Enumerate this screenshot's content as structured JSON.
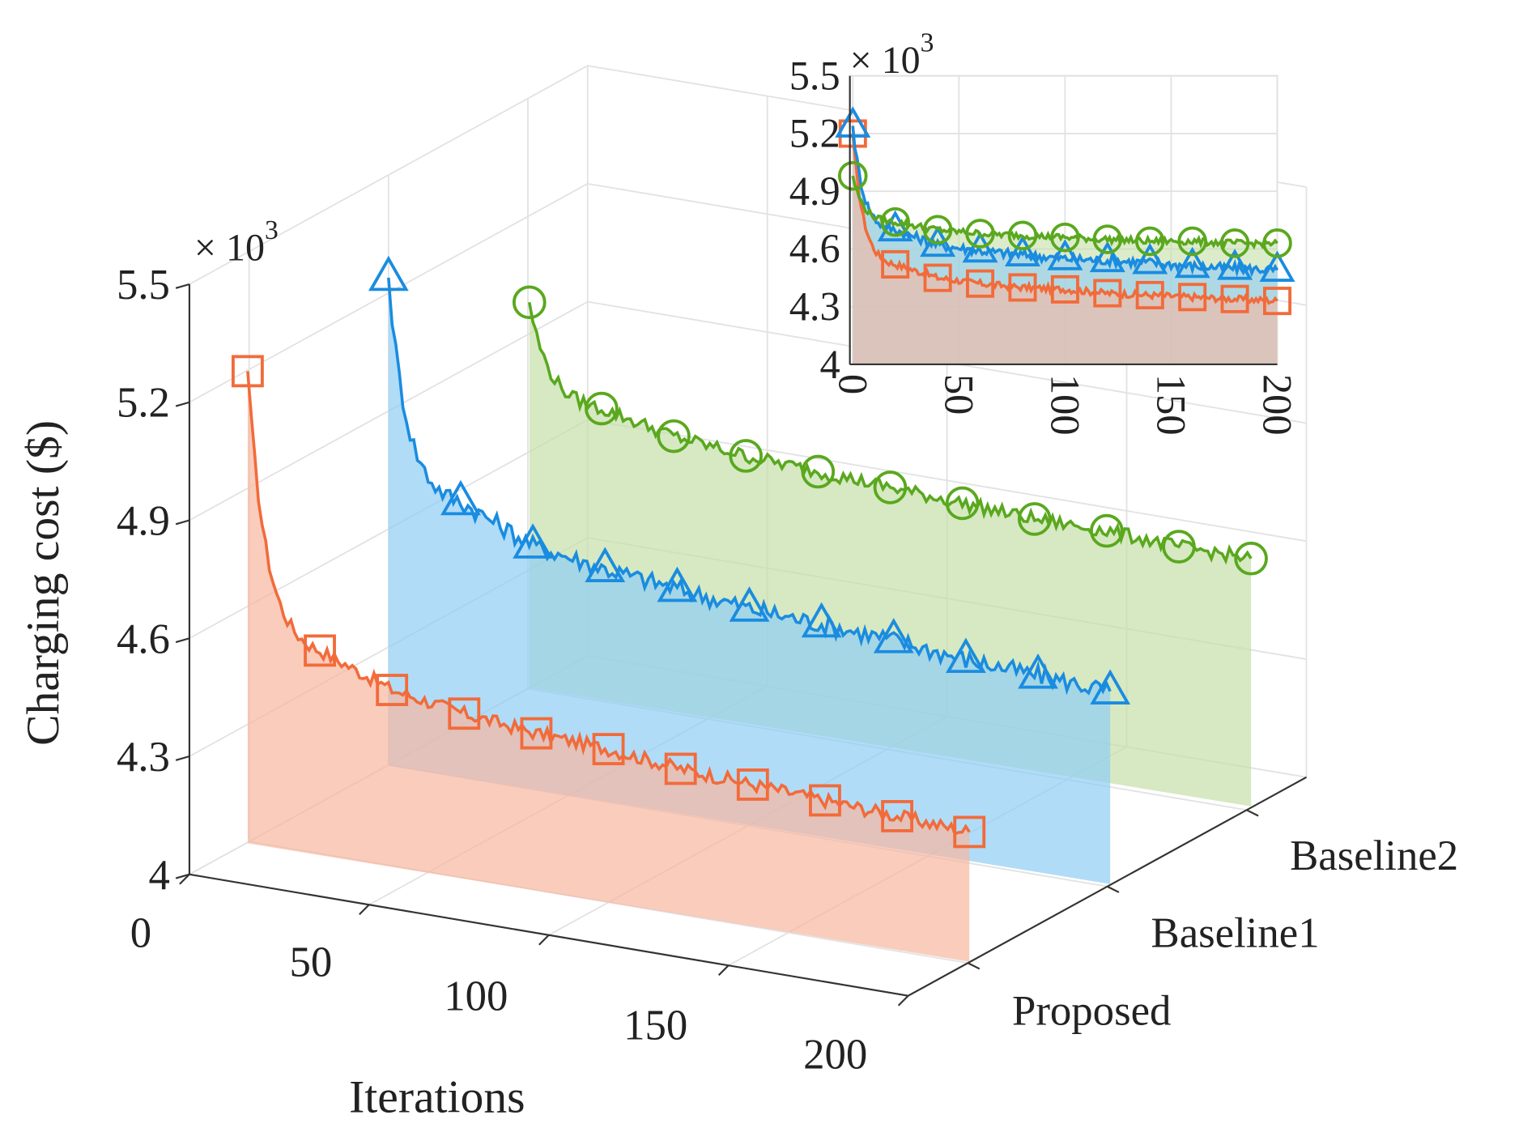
{
  "chart_data": {
    "type": "line",
    "style": "3d-waterfall with filled areas and inset 2d plot",
    "xlabel": "Iterations",
    "ylabel": "Charging cost ($)",
    "y_multiplier": "× 10",
    "y_multiplier_exp": "3",
    "x_ticks": [
      "0",
      "50",
      "100",
      "150",
      "200"
    ],
    "y_ticks": [
      "4",
      "4.3",
      "4.6",
      "4.9",
      "5.2",
      "5.5"
    ],
    "xlim": [
      0,
      200
    ],
    "ylim": [
      4.0,
      5.5
    ],
    "grid": true,
    "marker_x": [
      0,
      20,
      40,
      60,
      80,
      100,
      120,
      140,
      160,
      180,
      200
    ],
    "series": [
      {
        "name": "Proposed",
        "marker": "square",
        "color": "#f26b3a",
        "fill": "#f8b6a0",
        "values": [
          5.2,
          4.52,
          4.45,
          4.42,
          4.4,
          4.39,
          4.37,
          4.36,
          4.35,
          4.34,
          4.33
        ]
      },
      {
        "name": "Baseline1",
        "marker": "triangle",
        "color": "#1a8ce0",
        "fill": "#8fcdf5",
        "values": [
          5.24,
          4.7,
          4.62,
          4.59,
          4.57,
          4.55,
          4.54,
          4.53,
          4.51,
          4.5,
          4.49
        ]
      },
      {
        "name": "Baseline2",
        "marker": "circle",
        "color": "#5aa81e",
        "fill": "#c4dfa8",
        "values": [
          4.98,
          4.74,
          4.7,
          4.68,
          4.67,
          4.66,
          4.65,
          4.64,
          4.64,
          4.63,
          4.63
        ]
      }
    ],
    "inset": {
      "x_ticks": [
        "0",
        "50",
        "100",
        "150",
        "200"
      ],
      "y_ticks": [
        "4",
        "4.3",
        "4.6",
        "4.9",
        "5.2",
        "5.5"
      ],
      "y_multiplier": "× 10",
      "y_multiplier_exp": "3"
    }
  }
}
